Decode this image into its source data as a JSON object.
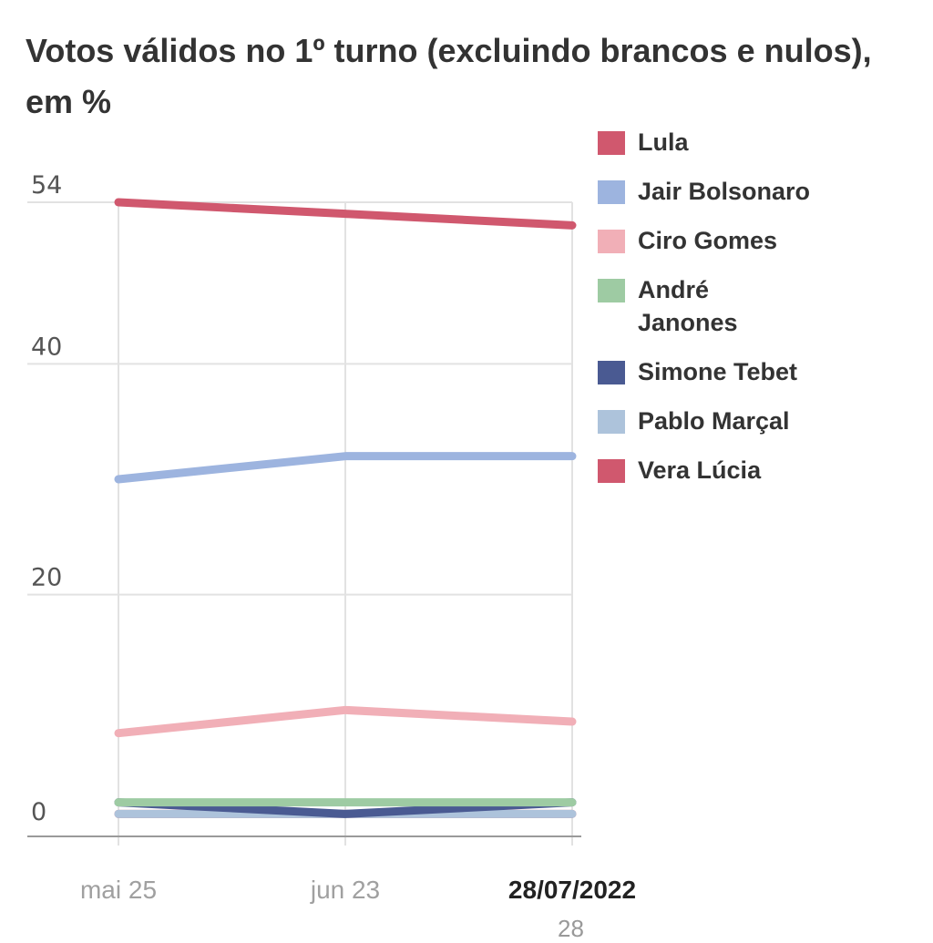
{
  "chart_data": {
    "type": "line",
    "title": "Votos válidos no 1º turno (excluindo brancos e nulos), em %",
    "categories": [
      "mai 25",
      "jun 23",
      "28/07/2022"
    ],
    "highlighted_category": "28/07/2022",
    "y_ticks": [
      "0",
      "20",
      "40",
      "54"
    ],
    "ylim": [
      0,
      54
    ],
    "grid": true,
    "legend_position": "right",
    "series": [
      {
        "name": "Lula",
        "color": "#d0586e",
        "values": [
          54,
          53,
          52
        ]
      },
      {
        "name": "Jair Bolsonaro",
        "color": "#9db4df",
        "values": [
          30,
          32,
          32
        ]
      },
      {
        "name": "Ciro Gomes",
        "color": "#f1afb7",
        "values": [
          8,
          10,
          9
        ]
      },
      {
        "name": "André Janones",
        "color": "#9ecba3",
        "values": [
          2,
          2,
          2
        ]
      },
      {
        "name": "Simone Tebet",
        "color": "#4a5a92",
        "values": [
          2,
          1,
          2
        ]
      },
      {
        "name": "Pablo Marçal",
        "color": "#adc3db",
        "values": [
          1,
          1,
          1
        ]
      },
      {
        "name": "Vera Lúcia",
        "color": "#d0586e",
        "values": [
          1,
          1,
          1
        ]
      }
    ]
  },
  "footer_fragment": "28"
}
